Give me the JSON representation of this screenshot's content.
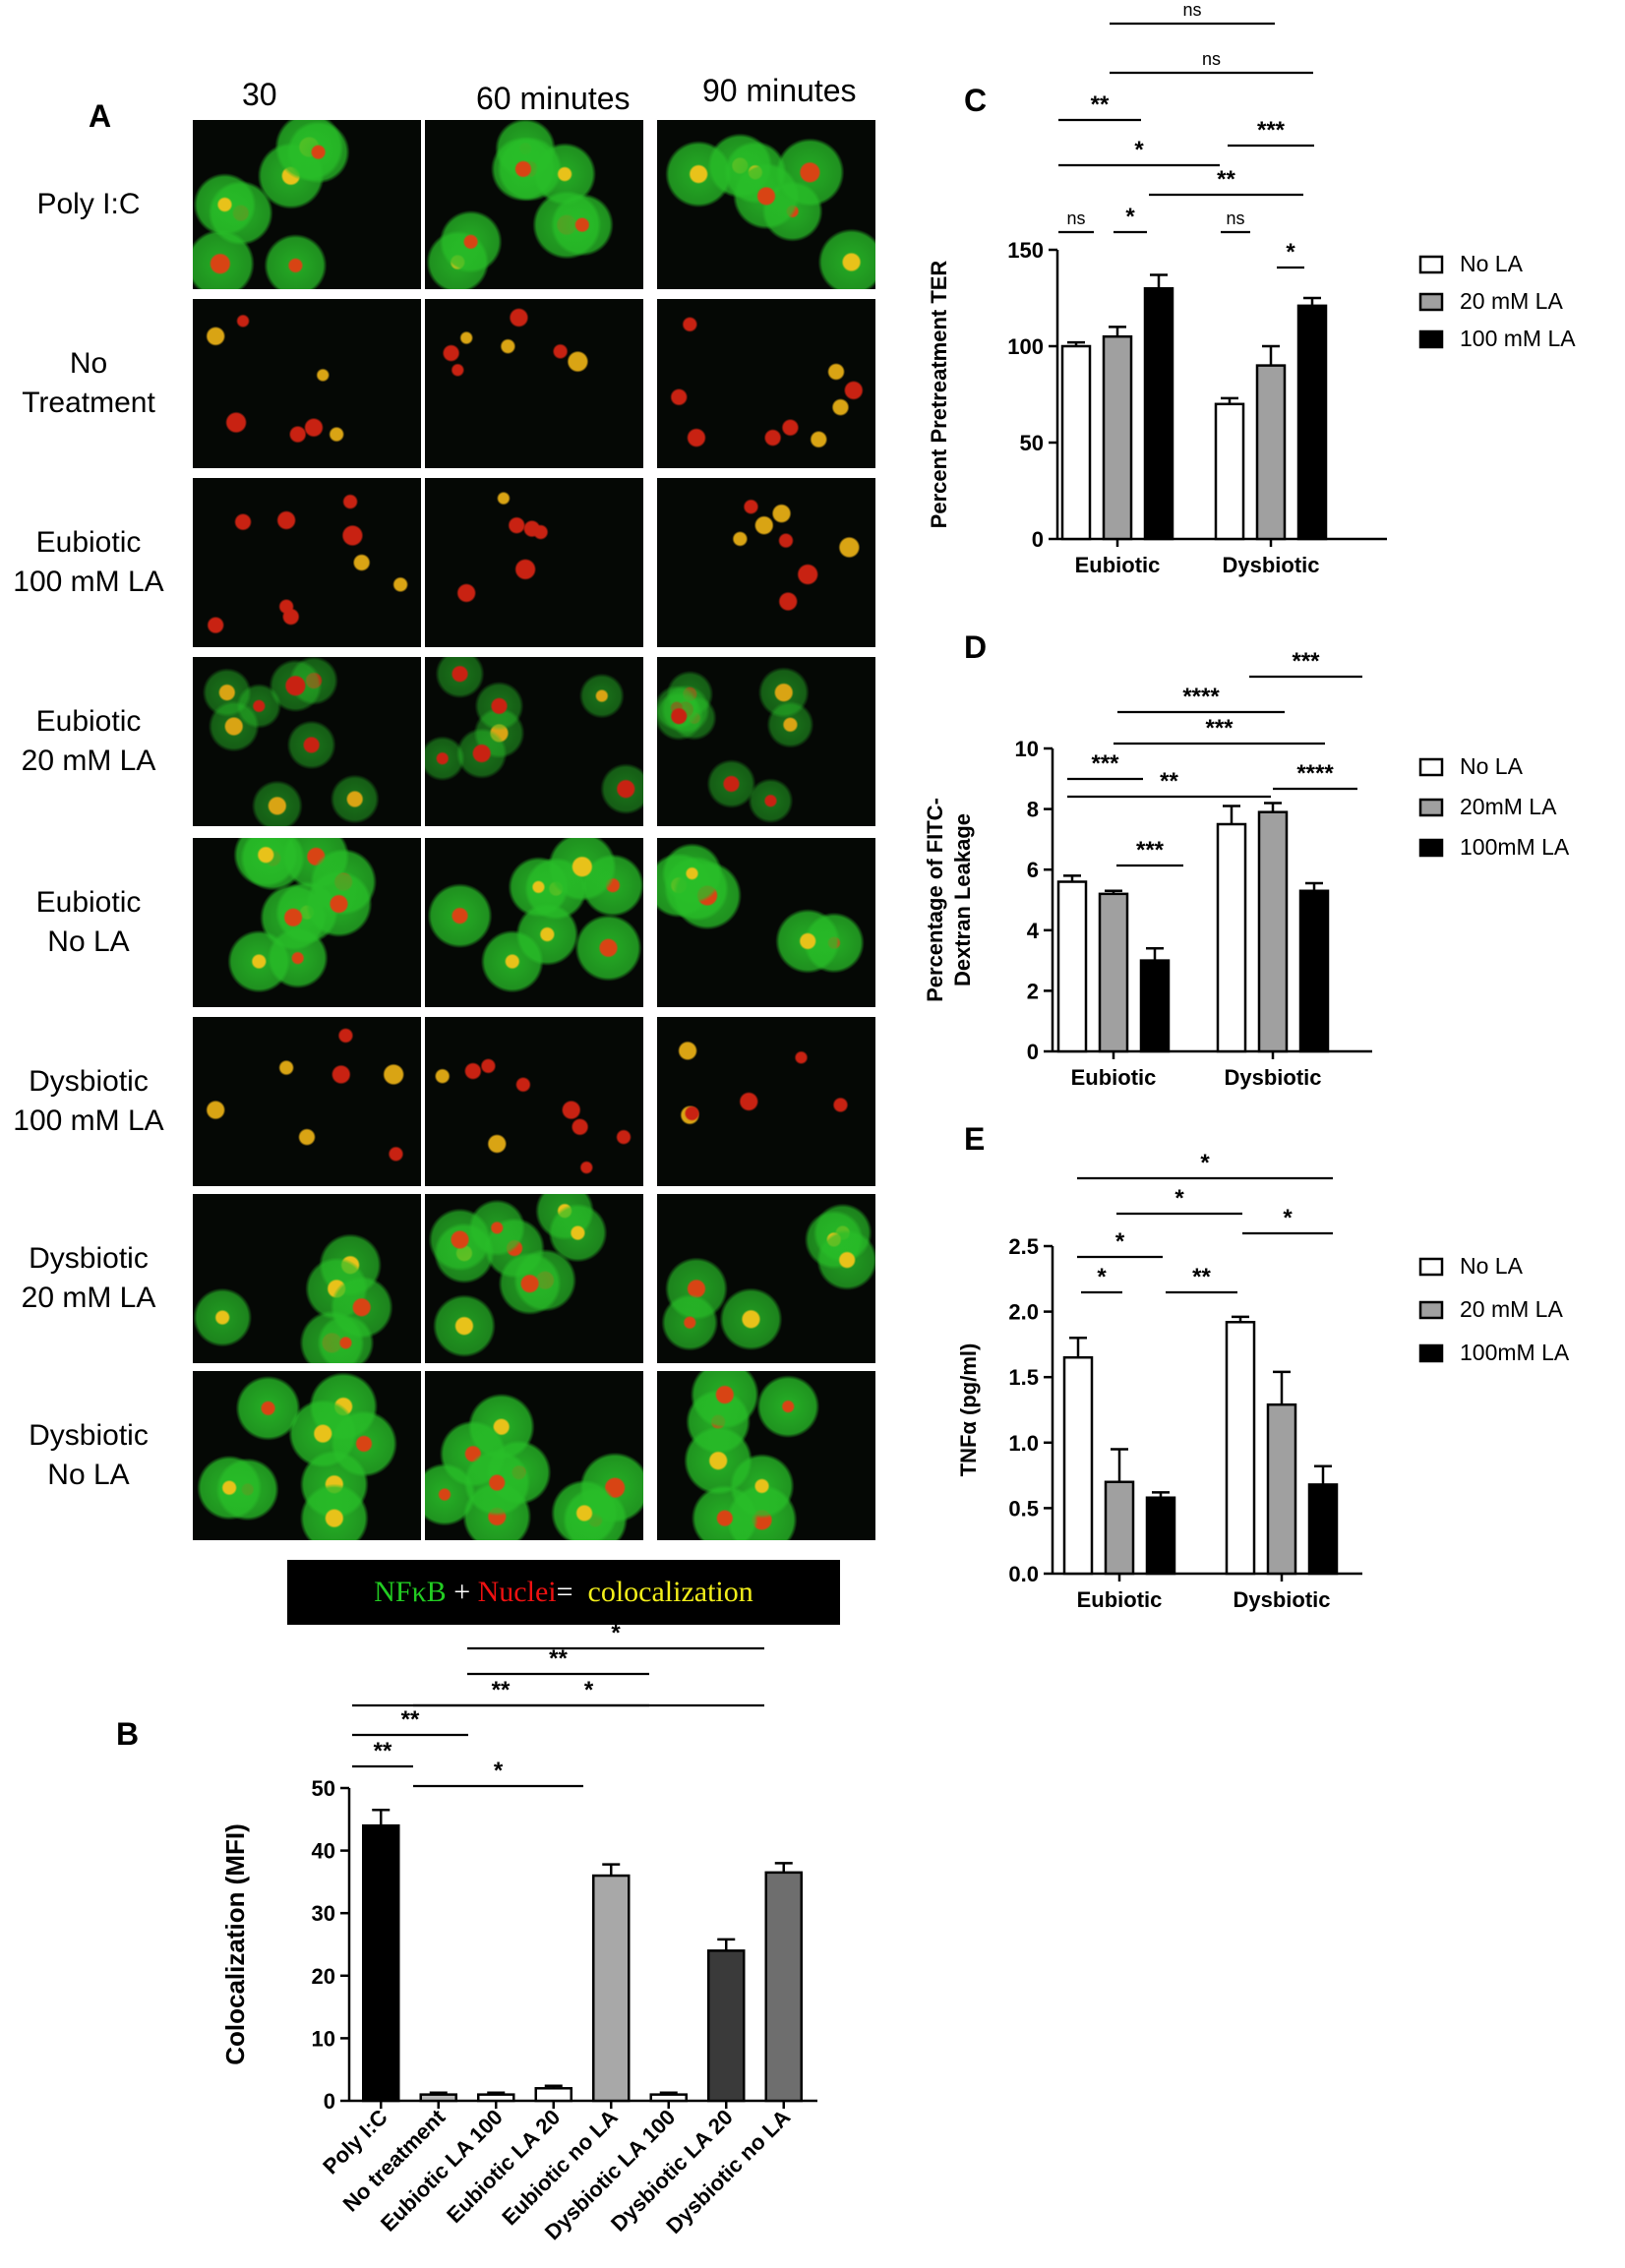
{
  "panels": {
    "a": {
      "letter": "A",
      "columns": [
        "30",
        "60 minutes",
        "90 minutes"
      ],
      "rows": [
        {
          "label": [
            "Poly I:C"
          ],
          "green": 0.9
        },
        {
          "label": [
            "No",
            "Treatment"
          ],
          "green": 0.15
        },
        {
          "label": [
            "Eubiotic",
            "100  mM LA"
          ],
          "green": 0.1
        },
        {
          "label": [
            "Eubiotic",
            "20 mM LA"
          ],
          "green": 0.35
        },
        {
          "label": [
            "Eubiotic",
            "No LA"
          ],
          "green": 0.9
        },
        {
          "label": [
            "Dysbiotic",
            "100 mM LA"
          ],
          "green": 0.1
        },
        {
          "label": [
            "Dysbiotic",
            "20 mM LA"
          ],
          "green": 0.75
        },
        {
          "label": [
            "Dysbiotic",
            "No LA"
          ],
          "green": 0.95
        }
      ],
      "stain_legend": {
        "part1": "NFκB",
        "plus": " + ",
        "part2": "Nuclei",
        "eq": "=  ",
        "part3": "colocalization",
        "colors": {
          "green": "#22cc22",
          "red": "#ee1111",
          "yellow": "#f2ee1a",
          "white": "#ffffff"
        }
      }
    },
    "b": {
      "letter": "B"
    },
    "c": {
      "letter": "C"
    },
    "d": {
      "letter": "D"
    },
    "e": {
      "letter": "E"
    }
  },
  "chart_data": [
    {
      "id": "B",
      "type": "bar",
      "ylabel": "Colocalization (MFI)",
      "ylim": [
        0,
        50
      ],
      "yticks": [
        0,
        10,
        20,
        30,
        40,
        50
      ],
      "categories": [
        "Poly I:C",
        "No treatment",
        "Eubiotic LA 100",
        "Eubiotic LA 20",
        "Eubiotic no LA",
        "Dysbiotic LA 100",
        "Dysbiotic LA 20",
        "Dysbiotic no LA"
      ],
      "values": [
        44,
        1,
        1,
        2,
        36,
        1,
        24,
        36.5
      ],
      "errors": [
        2.5,
        0.3,
        0.3,
        0.4,
        1.8,
        0.3,
        1.8,
        1.5
      ],
      "colors": [
        "#000000",
        "#bbbbbb",
        "#ffffff",
        "#ffffff",
        "#a8a8a8",
        "#ffffff",
        "#3a3a3a",
        "#6e6e6e"
      ],
      "significance": [
        {
          "from": 0,
          "to": 1,
          "label": "**"
        },
        {
          "from": 0,
          "to": 2,
          "label": "**"
        },
        {
          "from": 0,
          "to": 3,
          "label": "**"
        },
        {
          "from": 1,
          "to": 4,
          "label": "*"
        },
        {
          "from": 1,
          "to": 7,
          "label": "*"
        },
        {
          "from": 2,
          "to": 5,
          "label": "**"
        },
        {
          "from": 2,
          "to": 7,
          "label": "*"
        }
      ]
    },
    {
      "id": "C",
      "type": "bar",
      "ylabel": "Percent Pretreatment TER",
      "ylim": [
        0,
        150
      ],
      "yticks": [
        0,
        50,
        100,
        150
      ],
      "groups": [
        "Eubiotic",
        "Dysbiotic"
      ],
      "series": [
        {
          "name": "No LA",
          "color": "#ffffff",
          "values": [
            100,
            70
          ],
          "errors": [
            2,
            3
          ]
        },
        {
          "name": "20 mM LA",
          "color": "#a0a0a0",
          "values": [
            105,
            90
          ],
          "errors": [
            5,
            10
          ]
        },
        {
          "name": "100 mM LA",
          "color": "#000000",
          "values": [
            130,
            121
          ],
          "errors": [
            7,
            4
          ]
        }
      ],
      "significance": [
        {
          "label": "ns"
        },
        {
          "label": "*"
        },
        {
          "label": "ns"
        },
        {
          "label": "*"
        },
        {
          "label": "*"
        },
        {
          "label": "**"
        },
        {
          "label": "**"
        },
        {
          "label": "***"
        },
        {
          "label": "ns"
        },
        {
          "label": "ns"
        }
      ]
    },
    {
      "id": "D",
      "type": "bar",
      "ylabel": [
        "Percentage of FITC-",
        "Dextran Leakage"
      ],
      "ylim": [
        0,
        10
      ],
      "yticks": [
        0,
        2,
        4,
        6,
        8,
        10
      ],
      "groups": [
        "Eubiotic",
        "Dysbiotic"
      ],
      "series": [
        {
          "name": "No LA",
          "color": "#ffffff",
          "values": [
            5.6,
            7.5
          ],
          "errors": [
            0.2,
            0.6
          ]
        },
        {
          "name": "20mM LA",
          "color": "#a0a0a0",
          "values": [
            5.2,
            7.9
          ],
          "errors": [
            0.1,
            0.3
          ]
        },
        {
          "name": "100mM LA",
          "color": "#000000",
          "values": [
            3.0,
            5.3
          ],
          "errors": [
            0.4,
            0.25
          ]
        }
      ],
      "significance": [
        {
          "label": "***"
        },
        {
          "label": "***"
        },
        {
          "label": "**"
        },
        {
          "label": "****"
        },
        {
          "label": "***"
        },
        {
          "label": "****"
        },
        {
          "label": "***"
        }
      ]
    },
    {
      "id": "E",
      "type": "bar",
      "ylabel": "TNFα (pg/ml)",
      "ylim": [
        0,
        2.5
      ],
      "yticks": [
        "0.0",
        "0.5",
        "1.0",
        "1.5",
        "2.0",
        "2.5"
      ],
      "groups": [
        "Eubiotic",
        "Dysbiotic"
      ],
      "series": [
        {
          "name": "No LA",
          "color": "#ffffff",
          "values": [
            1.65,
            1.92
          ],
          "errors": [
            0.15,
            0.04
          ]
        },
        {
          "name": "20 mM LA",
          "color": "#a0a0a0",
          "values": [
            0.7,
            1.29
          ],
          "errors": [
            0.25,
            0.25
          ]
        },
        {
          "name": "100mM LA",
          "color": "#000000",
          "values": [
            0.58,
            0.68
          ],
          "errors": [
            0.04,
            0.14
          ]
        }
      ],
      "significance": [
        {
          "label": "*"
        },
        {
          "label": "*"
        },
        {
          "label": "**"
        },
        {
          "label": "*"
        },
        {
          "label": "*"
        },
        {
          "label": "*"
        }
      ]
    }
  ]
}
